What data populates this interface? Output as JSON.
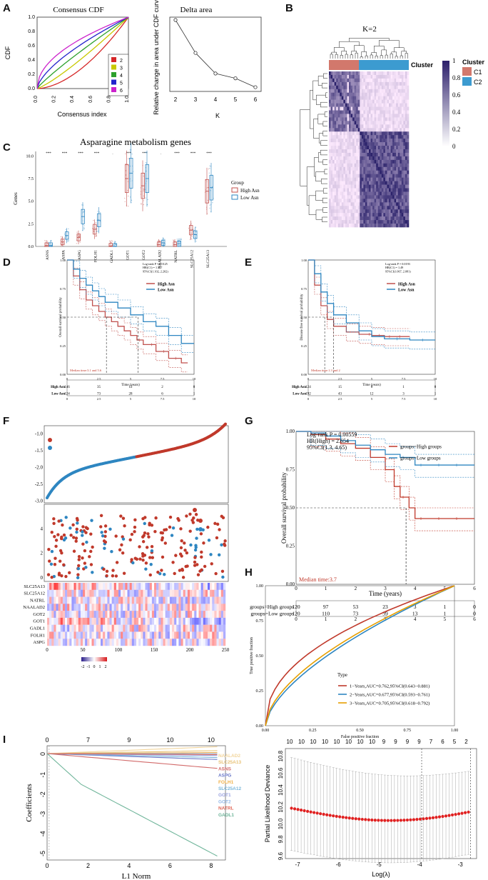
{
  "panels": {
    "A": "A",
    "B": "B",
    "C": "C",
    "D": "D",
    "E": "E",
    "F": "F",
    "G": "G",
    "H": "H",
    "I": "I"
  },
  "chart_data": [
    {
      "id": "A1",
      "type": "line",
      "title": "Consensus CDF",
      "xlabel": "Consensus index",
      "ylabel": "CDF",
      "xticks": [
        "0.0",
        "0.2",
        "0.4",
        "0.6",
        "0.8",
        "1.0"
      ],
      "yticks": [
        "0.0",
        "0.2",
        "0.4",
        "0.6",
        "0.8",
        "1.0"
      ],
      "xlim": [
        0,
        1
      ],
      "ylim": [
        0,
        1
      ],
      "legend": [
        "2",
        "3",
        "4",
        "5",
        "6"
      ],
      "colors": [
        "#d62728",
        "#c8c800",
        "#2ca02c",
        "#2222cc",
        "#cc22cc"
      ],
      "curve_power": [
        3.2,
        2.2,
        1.6,
        1.2,
        0.9
      ]
    },
    {
      "id": "A2",
      "type": "line",
      "title": "Delta area",
      "xlabel": "K",
      "ylabel": "Relative change in area under CDF curve",
      "x": [
        2,
        3,
        4,
        5,
        6
      ],
      "y": [
        1.0,
        0.52,
        0.22,
        0.15,
        0.02
      ],
      "xticks": [
        "2",
        "3",
        "4",
        "5",
        "6"
      ],
      "xlim": [
        2,
        6
      ],
      "ylim": [
        0,
        1
      ]
    },
    {
      "id": "B",
      "type": "heatmap",
      "title": "K=2",
      "cluster_label": "Cluster",
      "legend_title": "Cluster",
      "legend": [
        "C1",
        "C2"
      ],
      "cluster_colors": [
        "#d2786c",
        "#3c9bd0"
      ],
      "scale_ticks": [
        "1",
        "0.8",
        "0.6",
        "0.4",
        "0.2",
        "0"
      ]
    },
    {
      "id": "C",
      "type": "box",
      "title": "Asparagine metabolism genes",
      "ylabel": "Genes",
      "categories": [
        "ASNS",
        "ASPA",
        "ASPG",
        "FOLH1",
        "GADL1",
        "GOT1",
        "GOT2",
        "NAALAD2",
        "NATRL",
        "SLC25A12",
        "SLC25A13"
      ],
      "significance": [
        "***",
        "***",
        "***",
        "***",
        ".",
        "***",
        "***",
        ".",
        "***",
        "***",
        "***"
      ],
      "series": [
        {
          "name": "High Asn",
          "color": "#c0504d",
          "medians": [
            0.1,
            0.5,
            1.0,
            1.9,
            0.05,
            7.5,
            6.7,
            0.2,
            0.2,
            1.8,
            6.1
          ]
        },
        {
          "name": "Low Asn",
          "color": "#2e86c1",
          "medians": [
            0.1,
            1.2,
            3.3,
            2.9,
            0.02,
            8.1,
            7.5,
            0.4,
            0.3,
            1.3,
            6.5
          ]
        }
      ],
      "legend_title": "Group",
      "yticks": [
        "0.0",
        "2.5",
        "5.0",
        "7.5",
        "10.0"
      ],
      "ylim": [
        0,
        10.5
      ]
    },
    {
      "id": "D",
      "type": "line",
      "ylabel": "Overall survival probability",
      "xlabel": "Time (years)",
      "stats": [
        "Log-rank P = 0.0125",
        "HR(C1) = 1.557",
        "95%CI(1.102, 2.202)"
      ],
      "median": "Median time:3.1 and 5.6",
      "series": [
        {
          "name": "High Asn",
          "color": "#c0504d",
          "x": [
            0,
            0.5,
            1,
            1.5,
            2,
            2.5,
            3,
            3.5,
            4,
            4.5,
            5,
            5.5,
            6,
            7,
            8,
            9,
            9.5
          ],
          "y": [
            1,
            0.86,
            0.74,
            0.65,
            0.6,
            0.55,
            0.5,
            0.46,
            0.42,
            0.38,
            0.34,
            0.3,
            0.26,
            0.2,
            0.14,
            0.1,
            0.1
          ]
        },
        {
          "name": "Low Asn",
          "color": "#2e86c1",
          "x": [
            0,
            0.5,
            1,
            1.5,
            2,
            2.5,
            3,
            4,
            5,
            6,
            7,
            8,
            9,
            10
          ],
          "y": [
            1,
            0.92,
            0.84,
            0.78,
            0.73,
            0.68,
            0.63,
            0.58,
            0.52,
            0.46,
            0.42,
            0.34,
            0.27,
            0.27
          ]
        }
      ],
      "risk_rows": [
        {
          "label": "High Asn",
          "values": [
            "146",
            "35",
            "12",
            "2",
            "0"
          ]
        },
        {
          "label": "Low Asn",
          "values": [
            "124",
            "73",
            "28",
            "6",
            "1"
          ]
        }
      ],
      "xticks": [
        "0",
        "2.5",
        "5",
        "7.5",
        "10"
      ],
      "yticks": [
        "0.00",
        "0.25",
        "0.50",
        "0.75",
        "1.00"
      ],
      "xlim": [
        0,
        10
      ]
    },
    {
      "id": "E",
      "type": "line",
      "ylabel": "Disease free survival probability",
      "xlabel": "Time (years)",
      "stats": [
        "Log-rank P = 0.0193",
        "HR(C1) = 1.49",
        "95%CI(1.067, 2.081)"
      ],
      "median": "Median time:1.3 and 2",
      "series": [
        {
          "name": "High Asn",
          "color": "#c0504d",
          "x": [
            0,
            0.5,
            1,
            1.5,
            2,
            3,
            4,
            5,
            6,
            7,
            8
          ],
          "y": [
            1,
            0.78,
            0.6,
            0.48,
            0.42,
            0.37,
            0.35,
            0.34,
            0.33,
            0.33,
            0.33
          ]
        },
        {
          "name": "Low Asn",
          "color": "#2e86c1",
          "x": [
            0,
            0.5,
            1,
            1.5,
            2,
            3,
            4,
            5,
            6,
            8,
            10
          ],
          "y": [
            1,
            0.88,
            0.72,
            0.62,
            0.52,
            0.45,
            0.38,
            0.33,
            0.31,
            0.3,
            0.3
          ]
        }
      ],
      "risk_rows": [
        {
          "label": "High Asn",
          "values": [
            "124",
            "15",
            "6",
            "1",
            "0"
          ]
        },
        {
          "label": "Low Asn",
          "values": [
            "192",
            "43",
            "12",
            "3",
            "1"
          ]
        }
      ],
      "xticks": [
        "0",
        "2.5",
        "5",
        "7.5",
        "10"
      ],
      "yticks": [
        "0.00",
        "0.25",
        "0.50",
        "0.75",
        "1.00"
      ],
      "xlim": [
        0,
        10
      ]
    },
    {
      "id": "F",
      "type": "scatter",
      "risk": {
        "ylabel": "Riskscore",
        "legend_title": "RiskType",
        "legend": [
          "High_risk",
          "Low_risk"
        ],
        "colors": [
          "#c0392b",
          "#2e86c1"
        ],
        "yticks": [
          "-1.0",
          "-1.5",
          "-2.0",
          "-2.5",
          "-3.0"
        ],
        "ylim": [
          -3.05,
          -0.75
        ],
        "n": 240
      },
      "time": {
        "ylabel": "Time",
        "legend_title": "Status",
        "legend": [
          "Alive",
          "Dead"
        ],
        "yticks": [
          "0",
          "2",
          "4"
        ],
        "ylim": [
          -0.3,
          6
        ]
      },
      "heat": {
        "genes": [
          "SLC25A13",
          "SLC25A12",
          "NATRL",
          "NAALAD2",
          "GOT2",
          "GOT1",
          "GADL1",
          "FOLH1",
          "ASPG"
        ],
        "xlabel": "Patients",
        "xticks": [
          "0",
          "50",
          "100",
          "150",
          "200",
          "250"
        ],
        "scale_label": "z-score of expression",
        "scale_ticks": [
          "-2",
          "-1",
          "0",
          "1",
          "2"
        ]
      }
    },
    {
      "id": "G",
      "type": "line",
      "ylabel": "Overall survival probability",
      "xlabel": "Time (years)",
      "stats": [
        "Log-rank P = 0.00559",
        "HR(High) = 2.654",
        "95%CI(1.3, 4.65)"
      ],
      "median": "Median time:3.7",
      "series": [
        {
          "name": "groups=High groups",
          "color": "#c0392b",
          "x": [
            0,
            0.5,
            1,
            1.5,
            2,
            2.5,
            3,
            3.3,
            3.5,
            3.8,
            4,
            5,
            6
          ],
          "y": [
            1,
            0.98,
            0.95,
            0.92,
            0.89,
            0.83,
            0.75,
            0.64,
            0.57,
            0.5,
            0.43,
            0.43,
            0.43
          ]
        },
        {
          "name": "groups=Low groups",
          "color": "#2e86c1",
          "x": [
            0,
            0.5,
            1,
            1.5,
            2,
            2.5,
            3,
            3.5,
            4,
            5,
            6
          ],
          "y": [
            1,
            0.99,
            0.97,
            0.94,
            0.91,
            0.88,
            0.85,
            0.83,
            0.78,
            0.78,
            0.78
          ]
        }
      ],
      "risk_rows": [
        {
          "label": "groups=High groups",
          "values": [
            "120",
            "97",
            "53",
            "23",
            "3",
            "1",
            "0"
          ]
        },
        {
          "label": "groups=Low groups",
          "values": [
            "120",
            "110",
            "73",
            "39",
            "13",
            "1",
            "0"
          ]
        }
      ],
      "xticks": [
        "0",
        "1",
        "2",
        "3",
        "4",
        "5",
        "6"
      ],
      "yticks": [
        "0.00",
        "0.25",
        "0.50",
        "0.75",
        "1.00"
      ],
      "xlim": [
        0,
        6
      ]
    },
    {
      "id": "H",
      "type": "line",
      "xlabel": "False positive fraction",
      "ylabel": "True positive fraction",
      "legend_title": "Type",
      "series": [
        {
          "name": "1−Years,AUC=0.762,95%CI(0.643−0.881)",
          "color": "#c0392b",
          "power": 0.45
        },
        {
          "name": "2−Years,AUC=0.677,95%CI(0.593−0.761)",
          "color": "#2e86c1",
          "power": 0.62
        },
        {
          "name": "3−Years,AUC=0.705,95%CI(0.618−0.792)",
          "color": "#e69f00",
          "power": 0.58
        }
      ],
      "xticks": [
        "0.00",
        "0.25",
        "0.50",
        "0.75",
        "1.00"
      ],
      "yticks": [
        "0.00",
        "0.25",
        "0.50",
        "0.75",
        "1.00"
      ]
    },
    {
      "id": "I1",
      "type": "line",
      "xlabel": "L1 Norm",
      "ylabel": "Coefficients",
      "top_ticks": [
        "0",
        "7",
        "9",
        "10",
        "10"
      ],
      "xticks": [
        "0",
        "2",
        "4",
        "6",
        "8"
      ],
      "yticks": [
        "0",
        "-1",
        "-2",
        "-3",
        "-4",
        "-5"
      ],
      "xlim": [
        0,
        8.7
      ],
      "ylim": [
        -5.4,
        0.4
      ],
      "series": [
        {
          "name": "NAALAD2",
          "color": "#f2d59c",
          "end": 0.35
        },
        {
          "name": "SLC25A13",
          "color": "#e8c277",
          "end": 0.15
        },
        {
          "name": "ASNS",
          "color": "#d26a6a",
          "end": -0.75
        },
        {
          "name": "ASPG",
          "color": "#6a78c8",
          "end": -0.3
        },
        {
          "name": "FOLH1",
          "color": "#f0b04a",
          "end": 0.05
        },
        {
          "name": "SLC25A12",
          "color": "#7bb7da",
          "end": -0.2
        },
        {
          "name": "GOT1",
          "color": "#9aa3e0",
          "end": -0.1
        },
        {
          "name": "GOT2",
          "color": "#93b9e8",
          "end": 0.0
        },
        {
          "name": "NATRL",
          "color": "#e06a5a",
          "end": -0.05
        },
        {
          "name": "GADL1",
          "color": "#6fb59a",
          "end": -5.2
        }
      ]
    },
    {
      "id": "I2",
      "type": "scatter",
      "xlabel": "Log(λ)",
      "ylabel": "Partial Likelihood Deviance",
      "top_ticks": [
        "10",
        "10",
        "10",
        "10",
        "10",
        "10",
        "10",
        "10",
        "9",
        "9",
        "9",
        "9",
        "7",
        "6",
        "5",
        "2"
      ],
      "xticks": [
        "-7",
        "-6",
        "-5",
        "-4",
        "-3"
      ],
      "yticks": [
        "9.6",
        "9.8",
        "10.0",
        "10.2",
        "10.4",
        "10.6",
        "10.8"
      ],
      "xlim": [
        -7.3,
        -2.6
      ],
      "ylim": [
        9.55,
        10.85
      ],
      "vlines": [
        -3.95,
        -2.75
      ]
    }
  ]
}
